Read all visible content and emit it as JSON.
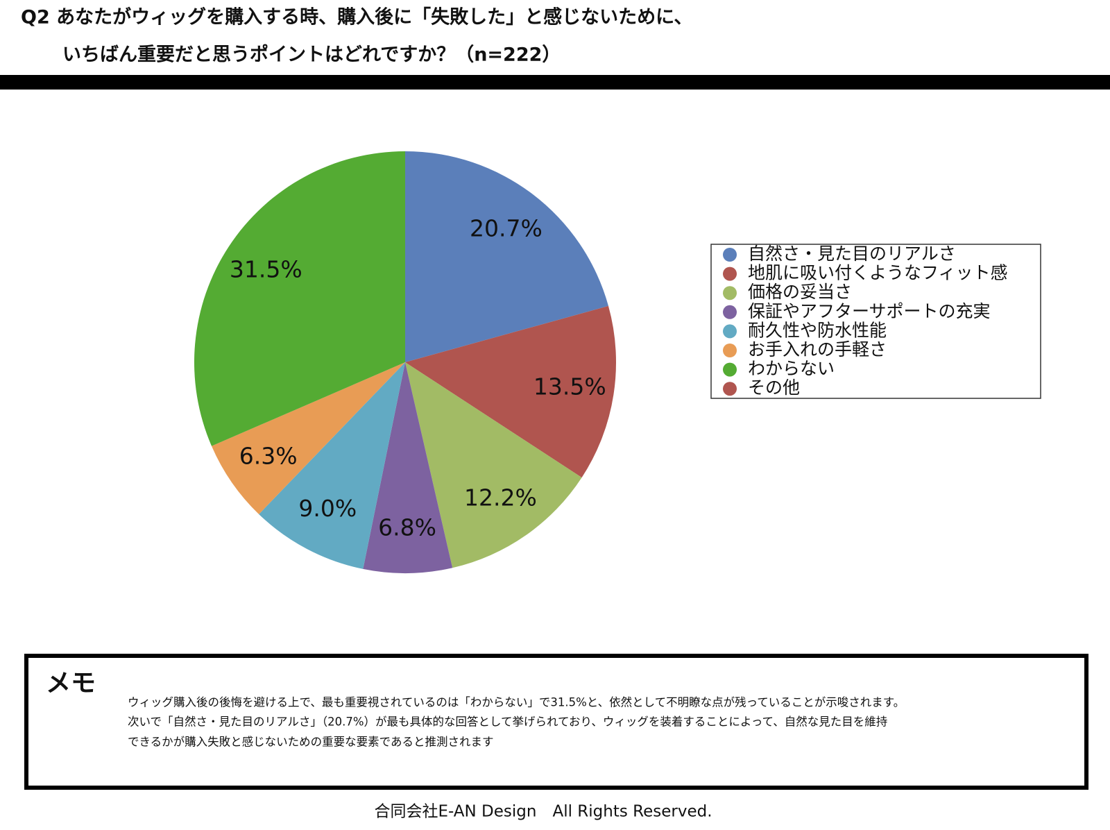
{
  "chart_data": {
    "type": "pie",
    "title": [
      "Q2 あなたがウィッグを購入する時、購入後に「失敗した」と感じないために、",
      "いちばん重要だと思うポイントはどれですか？（n=222）"
    ],
    "categories": [
      "自然さ・見た目のリアルさ",
      "地肌に吸い付くようなフィット感",
      "価格の妥当さ",
      "保証やアフターサポートの充実",
      "耐久性や防水性能",
      "お手入れの手軽さ",
      "わからない",
      "その他"
    ],
    "values": [
      20.7,
      13.5,
      12.2,
      6.8,
      9.0,
      6.3,
      31.5,
      0
    ],
    "value_labels": [
      "20.7%",
      "13.5%",
      "12.2%",
      "6.8%",
      "9.0%",
      "6.3%",
      "31.5%",
      null
    ],
    "colors": [
      "#5b7fba",
      "#b0554f",
      "#a2bb65",
      "#7d62a0",
      "#62aac3",
      "#e89c55",
      "#54ab33",
      "#b0554f"
    ],
    "legend": "right"
  },
  "memo": {
    "title": "メモ",
    "lines": [
      "ウィッグ購入後の後悔を避ける上で、最も重要視されているのは「わからない」で31.5%と、依然として不明瞭な点が残っていることが示唆されます。",
      "次いで「自然さ・見た目のリアルさ」（20.7%）が最も具体的な回答として挙げられており、ウィッグを装着することによって、自然な見た目を維持",
      "できるかが購入失敗と感じないための重要な要素であると推測されます"
    ]
  },
  "footer": "合同会社E-AN Design　All Rights Reserved."
}
